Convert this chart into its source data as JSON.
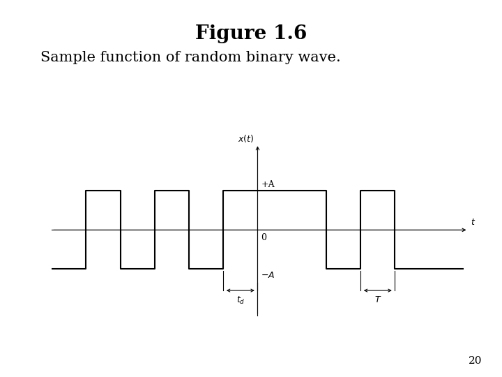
{
  "title_line1": "Figure 1.6",
  "title_line2": "Sample function of random binary wave.",
  "background_color": "#ffffff",
  "signal_color": "#000000",
  "wave_x": [
    -9,
    -7.5,
    -7.5,
    -6.0,
    -6.0,
    -4.5,
    -4.5,
    -3.0,
    -3.0,
    -1.5,
    -1.5,
    0.0,
    0.0,
    3.0,
    3.0,
    4.5,
    4.5,
    6.0,
    6.0,
    9.0
  ],
  "wave_y": [
    -1,
    -1,
    1,
    1,
    -1,
    -1,
    1,
    1,
    -1,
    -1,
    1,
    1,
    1,
    1,
    -1,
    -1,
    1,
    1,
    -1,
    -1
  ],
  "x_axis_start": -9.0,
  "x_axis_end": 9.2,
  "y_axis_start": -2.2,
  "y_axis_end": 2.2,
  "xlim": [
    -9.5,
    9.8
  ],
  "ylim": [
    -2.8,
    2.8
  ],
  "A": 1.0,
  "origin_x": 0.0,
  "td_x0": -1.5,
  "td_x1": 0.0,
  "T_x0": 4.5,
  "T_x1": 6.0,
  "lw_wave": 1.5,
  "lw_axis": 0.8,
  "page_number": "20",
  "fontsize_title1": 20,
  "fontsize_title2": 15,
  "fontsize_labels": 9,
  "fontsize_page": 11
}
